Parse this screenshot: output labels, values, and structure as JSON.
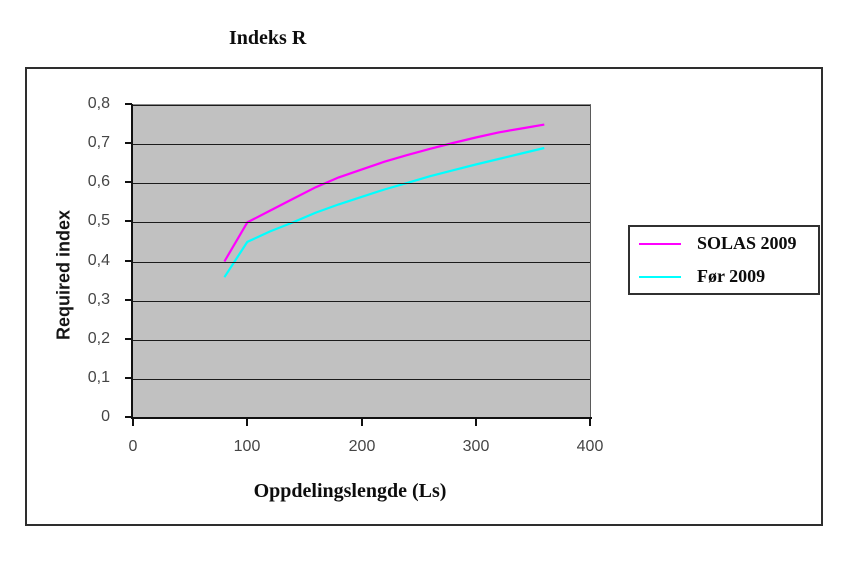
{
  "title": "Indeks R",
  "axes": {
    "y": {
      "title": "Required index",
      "ticks": [
        {
          "v": 0.8,
          "label": "0,8"
        },
        {
          "v": 0.7,
          "label": "0,7"
        },
        {
          "v": 0.6,
          "label": "0,6"
        },
        {
          "v": 0.5,
          "label": "0,5"
        },
        {
          "v": 0.4,
          "label": "0,4"
        },
        {
          "v": 0.3,
          "label": "0,3"
        },
        {
          "v": 0.2,
          "label": "0,2"
        },
        {
          "v": 0.1,
          "label": "0,1"
        },
        {
          "v": 0.0,
          "label": "0"
        }
      ]
    },
    "x": {
      "title": "Oppdelingslengde (Ls)",
      "ticks": [
        {
          "v": 0,
          "label": "0"
        },
        {
          "v": 100,
          "label": "100"
        },
        {
          "v": 200,
          "label": "200"
        },
        {
          "v": 300,
          "label": "300"
        },
        {
          "v": 400,
          "label": "400"
        }
      ]
    }
  },
  "colors": {
    "plot_background": "#C1C1C1",
    "gridline": "#1C1C1C",
    "axis": "#111111",
    "solas_2009": "#FF00FF",
    "for_2009": "#00FFFF"
  },
  "chart_data": {
    "type": "line",
    "title": "Indeks R",
    "xlabel": "Oppdelingslengde (Ls)",
    "ylabel": "Required index",
    "xlim": [
      0,
      400
    ],
    "ylim": [
      0,
      0.8
    ],
    "grid": "horizontal",
    "legend_position": "right-outside",
    "x": [
      80,
      100,
      120,
      140,
      160,
      180,
      200,
      220,
      240,
      260,
      280,
      300,
      320,
      340,
      360
    ],
    "series": [
      {
        "name": "SOLAS 2009",
        "color": "#FF00FF",
        "values": [
          0.4,
          0.5,
          0.53,
          0.56,
          0.59,
          0.615,
          0.635,
          0.655,
          0.672,
          0.688,
          0.703,
          0.717,
          0.73,
          0.74,
          0.75
        ]
      },
      {
        "name": "Før 2009",
        "color": "#00FFFF",
        "values": [
          0.36,
          0.45,
          0.477,
          0.5,
          0.525,
          0.546,
          0.565,
          0.584,
          0.601,
          0.618,
          0.633,
          0.648,
          0.662,
          0.676,
          0.69
        ]
      }
    ]
  }
}
